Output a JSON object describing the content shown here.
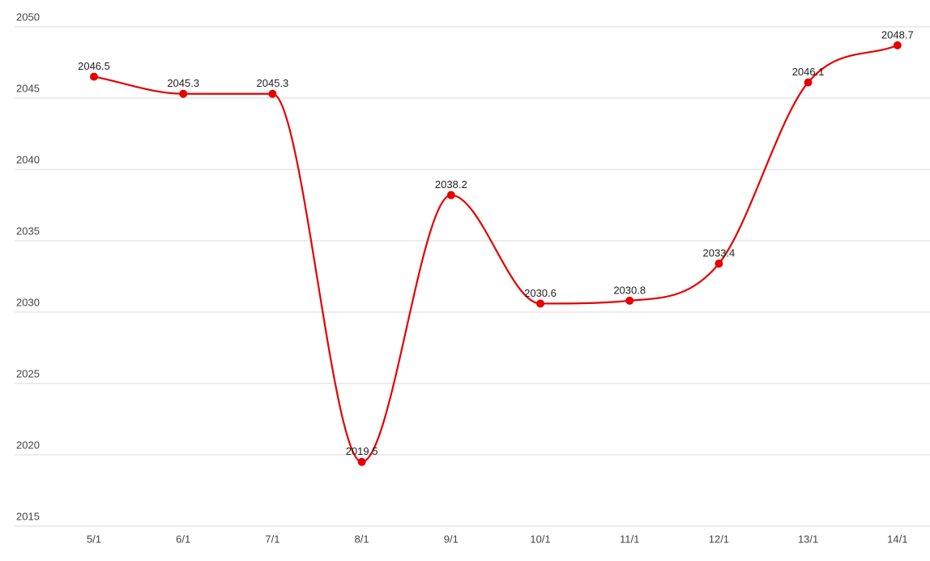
{
  "chart_data": {
    "type": "line",
    "categories": [
      "5/1",
      "6/1",
      "7/1",
      "8/1",
      "9/1",
      "10/1",
      "11/1",
      "12/1",
      "13/1",
      "14/1"
    ],
    "series": [
      {
        "name": "series",
        "color": "#e60000",
        "values": [
          2046.5,
          2045.3,
          2045.3,
          2019.5,
          2038.2,
          2030.6,
          2030.8,
          2033.4,
          2046.1,
          2048.7
        ]
      }
    ],
    "ylim": [
      2015,
      2050
    ],
    "yticks": [
      2015,
      2020,
      2025,
      2030,
      2035,
      2040,
      2045,
      2050
    ],
    "grid": true,
    "smooth": true
  }
}
